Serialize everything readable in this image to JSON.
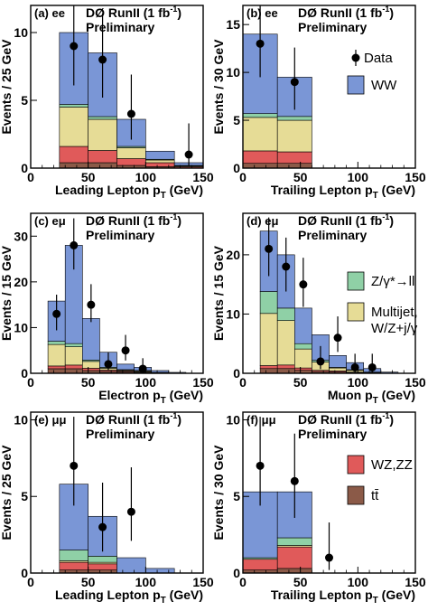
{
  "figure": {
    "experiment": "DØ RunII (1 fb",
    "experiment_sup": "-1",
    "experiment_close": ")",
    "status": "Preliminary"
  },
  "legend": {
    "data": "Data",
    "ww": "WW",
    "zgamma": "Z/γ*→ll",
    "multijet_line1": "Multijet,",
    "multijet_line2": "W/Z+j/γ",
    "wzzz": "WZ,ZZ",
    "ttbar": "tt̄"
  },
  "colors": {
    "ww": "#7a96d6",
    "zgamma": "#8fd0a6",
    "multijet": "#e6dc96",
    "wzzz": "#e05a5a",
    "ttbar": "#8b5a48"
  },
  "chart_data": [
    {
      "type": "bar",
      "stacked": true,
      "id": "a",
      "tag": "(a)",
      "channel": "ee",
      "xlabel": "Leading Lepton p",
      "xlabel_sub": "T",
      "xlabel_unit": " (GeV)",
      "ylabel": "Events / 25 GeV",
      "xlim": [
        0,
        150
      ],
      "ylim": [
        0,
        12
      ],
      "xticks": [
        0,
        50,
        100,
        150
      ],
      "yticks": [
        0,
        5,
        10
      ],
      "bins": [
        25,
        50,
        75,
        100,
        125,
        150
      ],
      "stack": {
        "ttbar": [
          0.4,
          0.4,
          0.2,
          0.1,
          0.0
        ],
        "wzzz": [
          1.2,
          0.9,
          0.5,
          0.3,
          0.1
        ],
        "multijet": [
          2.9,
          2.3,
          0.8,
          0.2,
          0.05
        ],
        "zgamma": [
          0.2,
          0.2,
          0.1,
          0.05,
          0.05
        ],
        "ww": [
          5.3,
          4.7,
          2.0,
          0.6,
          0.2
        ]
      },
      "data_points": [
        {
          "x": 37.5,
          "y": 9,
          "err": [
            2.9,
            3.6
          ]
        },
        {
          "x": 62.5,
          "y": 8,
          "err": [
            2.8,
            3.4
          ]
        },
        {
          "x": 87.5,
          "y": 4,
          "err": [
            1.9,
            2.9
          ]
        },
        {
          "x": 137.5,
          "y": 1,
          "err": [
            0.8,
            2.3
          ]
        }
      ]
    },
    {
      "type": "bar",
      "stacked": true,
      "id": "b",
      "tag": "(b)",
      "channel": "ee",
      "xlabel": "Trailing Lepton p",
      "xlabel_sub": "T",
      "xlabel_unit": " (GeV)",
      "ylabel": "Events / 30 GeV",
      "xlim": [
        0,
        150
      ],
      "ylim": [
        0,
        17
      ],
      "xticks": [
        0,
        50,
        100,
        150
      ],
      "yticks": [
        0,
        5,
        10,
        15
      ],
      "bins": [
        0,
        30,
        60,
        90,
        120,
        150
      ],
      "stack": {
        "ttbar": [
          0.5,
          0.5,
          0.0,
          0.0,
          0.0
        ],
        "wzzz": [
          1.3,
          1.2,
          0.0,
          0.0,
          0.0
        ],
        "multijet": [
          3.5,
          3.3,
          0.0,
          0.0,
          0.0
        ],
        "zgamma": [
          0.4,
          0.4,
          0.0,
          0.0,
          0.0
        ],
        "ww": [
          8.3,
          4.1,
          0.0,
          0.0,
          0.0
        ]
      },
      "data_points": [
        {
          "x": 15,
          "y": 13,
          "err": [
            3.5,
            4.2
          ]
        },
        {
          "x": 45,
          "y": 9,
          "err": [
            2.9,
            3.6
          ]
        }
      ]
    },
    {
      "type": "bar",
      "stacked": true,
      "id": "c",
      "tag": "(c)",
      "channel": "eμ",
      "xlabel": "Electron p",
      "xlabel_sub": "T",
      "xlabel_unit": " (GeV)",
      "ylabel": "Events / 15 GeV",
      "xlim": [
        0,
        150
      ],
      "ylim": [
        0,
        35
      ],
      "xticks": [
        0,
        50,
        100,
        150
      ],
      "yticks": [
        0,
        10,
        20,
        30
      ],
      "bins": [
        15,
        30,
        45,
        60,
        75,
        90,
        105,
        120,
        135,
        150
      ],
      "stack": {
        "ttbar": [
          1.0,
          1.0,
          0.6,
          0.4,
          0.3,
          0.2,
          0.1,
          0.0,
          0.0
        ],
        "wzzz": [
          0.6,
          0.8,
          0.5,
          0.3,
          0.2,
          0.1,
          0.1,
          0.0,
          0.0
        ],
        "multijet": [
          4.7,
          4.0,
          1.5,
          0.4,
          0.2,
          0.2,
          0.0,
          0.0,
          0.0
        ],
        "zgamma": [
          0.7,
          0.7,
          0.3,
          0.2,
          0.1,
          0.1,
          0.0,
          0.0,
          0.0
        ],
        "ww": [
          8.8,
          21.5,
          9.1,
          3.3,
          1.2,
          0.7,
          0.4,
          0.2,
          0.0
        ]
      },
      "data_points": [
        {
          "x": 22.5,
          "y": 13,
          "err": [
            3.6,
            4.2
          ]
        },
        {
          "x": 37.5,
          "y": 28,
          "err": [
            5.3,
            5.9
          ]
        },
        {
          "x": 52.5,
          "y": 15,
          "err": [
            3.8,
            4.5
          ]
        },
        {
          "x": 67.5,
          "y": 2,
          "err": [
            1.3,
            2.6
          ]
        },
        {
          "x": 82.5,
          "y": 5,
          "err": [
            2.2,
            3.4
          ]
        },
        {
          "x": 97.5,
          "y": 1,
          "err": [
            0.8,
            2.3
          ]
        }
      ]
    },
    {
      "type": "bar",
      "stacked": true,
      "id": "d",
      "tag": "(d)",
      "channel": "eμ",
      "xlabel": "Muon p",
      "xlabel_sub": "T",
      "xlabel_unit": " (GeV)",
      "ylabel": "Events / 15 GeV",
      "xlim": [
        0,
        150
      ],
      "ylim": [
        0,
        27
      ],
      "xticks": [
        0,
        50,
        100,
        150
      ],
      "yticks": [
        0,
        10,
        20
      ],
      "bins": [
        15,
        30,
        45,
        60,
        75,
        90,
        105,
        120,
        135,
        150
      ],
      "stack": {
        "ttbar": [
          0.8,
          0.8,
          0.5,
          0.3,
          0.2,
          0.1,
          0.0,
          0.0,
          0.0
        ],
        "wzzz": [
          0.5,
          0.6,
          0.4,
          0.2,
          0.2,
          0.1,
          0.1,
          0.0,
          0.0
        ],
        "multijet": [
          8.8,
          7.5,
          3.2,
          1.4,
          0.5,
          0.3,
          0.1,
          0.0,
          0.0
        ],
        "zgamma": [
          3.7,
          2.1,
          0.9,
          0.3,
          0.1,
          0.1,
          0.0,
          0.0,
          0.0
        ],
        "ww": [
          10.2,
          9.0,
          6.0,
          4.3,
          2.0,
          1.2,
          0.6,
          0.2,
          0.0
        ]
      },
      "data_points": [
        {
          "x": 22.5,
          "y": 21,
          "err": [
            4.6,
            5.3
          ]
        },
        {
          "x": 37.5,
          "y": 18,
          "err": [
            4.2,
            4.9
          ]
        },
        {
          "x": 52.5,
          "y": 15,
          "err": [
            3.8,
            4.5
          ]
        },
        {
          "x": 67.5,
          "y": 2,
          "err": [
            1.3,
            2.6
          ]
        },
        {
          "x": 82.5,
          "y": 6,
          "err": [
            2.4,
            3.6
          ]
        },
        {
          "x": 97.5,
          "y": 1,
          "err": [
            0.8,
            2.3
          ]
        },
        {
          "x": 112.5,
          "y": 1,
          "err": [
            0.8,
            2.3
          ]
        }
      ]
    },
    {
      "type": "bar",
      "stacked": true,
      "id": "e",
      "tag": "(e)",
      "channel": "μμ",
      "xlabel": "Leading Lepton p",
      "xlabel_sub": "T",
      "xlabel_unit": " (GeV)",
      "ylabel": "Events / 25 GeV",
      "xlim": [
        0,
        150
      ],
      "ylim": [
        0,
        10.5
      ],
      "xticks": [
        0,
        50,
        100,
        150
      ],
      "yticks": [
        0,
        5,
        10
      ],
      "bins": [
        25,
        50,
        75,
        100,
        125,
        150
      ],
      "stack": {
        "ttbar": [
          0.2,
          0.2,
          0.0,
          0.0,
          0.0
        ],
        "wzzz": [
          0.5,
          0.4,
          0.0,
          0.0,
          0.0
        ],
        "multijet": [
          0.1,
          0.1,
          0.0,
          0.0,
          0.0
        ],
        "zgamma": [
          0.7,
          0.4,
          0.0,
          0.0,
          0.0
        ],
        "ww": [
          4.3,
          2.6,
          1.0,
          0.3,
          0.0
        ]
      },
      "data_points": [
        {
          "x": 37.5,
          "y": 7,
          "err": [
            2.6,
            3.2
          ]
        },
        {
          "x": 62.5,
          "y": 3,
          "err": [
            1.6,
            2.9
          ]
        },
        {
          "x": 87.5,
          "y": 4,
          "err": [
            1.9,
            2.9
          ]
        }
      ]
    },
    {
      "type": "bar",
      "stacked": true,
      "id": "f",
      "tag": "(f)",
      "channel": "μμ",
      "xlabel": "Trailing Lepton p",
      "xlabel_sub": "T",
      "xlabel_unit": " (GeV)",
      "ylabel": "Events / 30 GeV",
      "xlim": [
        0,
        150
      ],
      "ylim": [
        0,
        10.5
      ],
      "xticks": [
        0,
        50,
        100,
        150
      ],
      "yticks": [
        0,
        5,
        10
      ],
      "bins": [
        0,
        30,
        60,
        90,
        120,
        150
      ],
      "stack": {
        "ttbar": [
          0.2,
          0.3,
          0.0,
          0.0,
          0.0
        ],
        "wzzz": [
          0.7,
          1.4,
          0.0,
          0.0,
          0.0
        ],
        "multijet": [
          0.0,
          0.1,
          0.0,
          0.0,
          0.0
        ],
        "zgamma": [
          0.1,
          0.5,
          0.0,
          0.0,
          0.0
        ],
        "ww": [
          4.3,
          3.0,
          0.0,
          0.0,
          0.0
        ]
      },
      "data_points": [
        {
          "x": 15,
          "y": 7,
          "err": [
            2.6,
            3.2
          ]
        },
        {
          "x": 45,
          "y": 6,
          "err": [
            2.4,
            3.1
          ]
        },
        {
          "x": 75,
          "y": 1,
          "err": [
            0.8,
            2.3
          ]
        }
      ]
    }
  ]
}
